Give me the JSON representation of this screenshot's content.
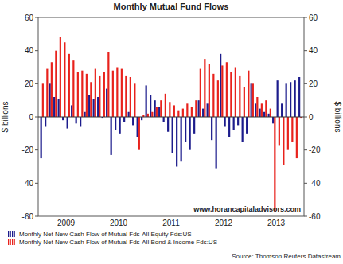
{
  "chart_data": {
    "type": "bar",
    "title": "Monthly Mutual Fund Flows",
    "y_label": "$ billions",
    "y2_label": "$ billions",
    "categories": [
      null,
      null,
      null,
      null,
      null,
      "2009",
      null,
      null,
      null,
      null,
      null,
      null,
      null,
      null,
      null,
      null,
      null,
      "2010",
      null,
      null,
      null,
      null,
      null,
      null,
      null,
      null,
      null,
      null,
      null,
      "2011",
      null,
      null,
      null,
      null,
      null,
      null,
      null,
      null,
      null,
      null,
      null,
      "2012",
      null,
      null,
      null,
      null,
      null,
      null,
      null,
      null,
      null,
      null,
      null,
      "2013",
      null,
      null,
      null,
      null,
      null,
      null
    ],
    "series": [
      {
        "name": "Monthly Net New Cash Flow of Mutual Fds-All Equity Fds:US",
        "color": "#1c1c8c",
        "values": [
          -25,
          -6,
          20,
          12,
          11,
          -2,
          -7,
          7,
          -4,
          -6,
          3,
          13,
          11,
          12,
          -1,
          17,
          -23,
          -8,
          -10,
          -3,
          3,
          -5,
          -12,
          -2,
          19,
          13,
          10,
          6,
          -3,
          -9,
          -22,
          -30,
          -27,
          -15,
          -20,
          -10,
          10,
          5,
          8,
          -14,
          -31,
          38,
          -6,
          -12,
          -8,
          -5,
          -15,
          -10,
          20,
          8,
          5,
          3,
          2,
          -4,
          22,
          8,
          20,
          21,
          22,
          24
        ]
      },
      {
        "name": "Monthly Net New Cash Flow of Mutual Fds-All Bond & Income Fds:US",
        "color": "#e8221c",
        "values": [
          20,
          29,
          33,
          40,
          48,
          45,
          38,
          34,
          27,
          28,
          26,
          21,
          29,
          25,
          27,
          39,
          28,
          30,
          29,
          25,
          24,
          20,
          -20,
          1,
          2,
          3,
          6,
          10,
          14,
          9,
          7,
          4,
          5,
          8,
          6,
          10,
          29,
          35,
          32,
          26,
          22,
          31,
          33,
          27,
          30,
          25,
          18,
          28,
          20,
          12,
          8,
          10,
          5,
          -57,
          -17,
          -29,
          -20,
          -15,
          -25,
          -1
        ]
      }
    ],
    "ylim": [
      -60,
      60
    ],
    "yticks": [
      -60,
      -40,
      -20,
      0,
      20,
      40,
      60
    ],
    "y2lim": [
      -60,
      60
    ],
    "y2ticks": [
      -60,
      -40,
      -20,
      0,
      20,
      40,
      60
    ],
    "grid": false,
    "legend": "bottom",
    "annotations": [
      "www.horancapitaladvisors.com"
    ],
    "source": "Source: Thomson Reuters Datastream"
  }
}
